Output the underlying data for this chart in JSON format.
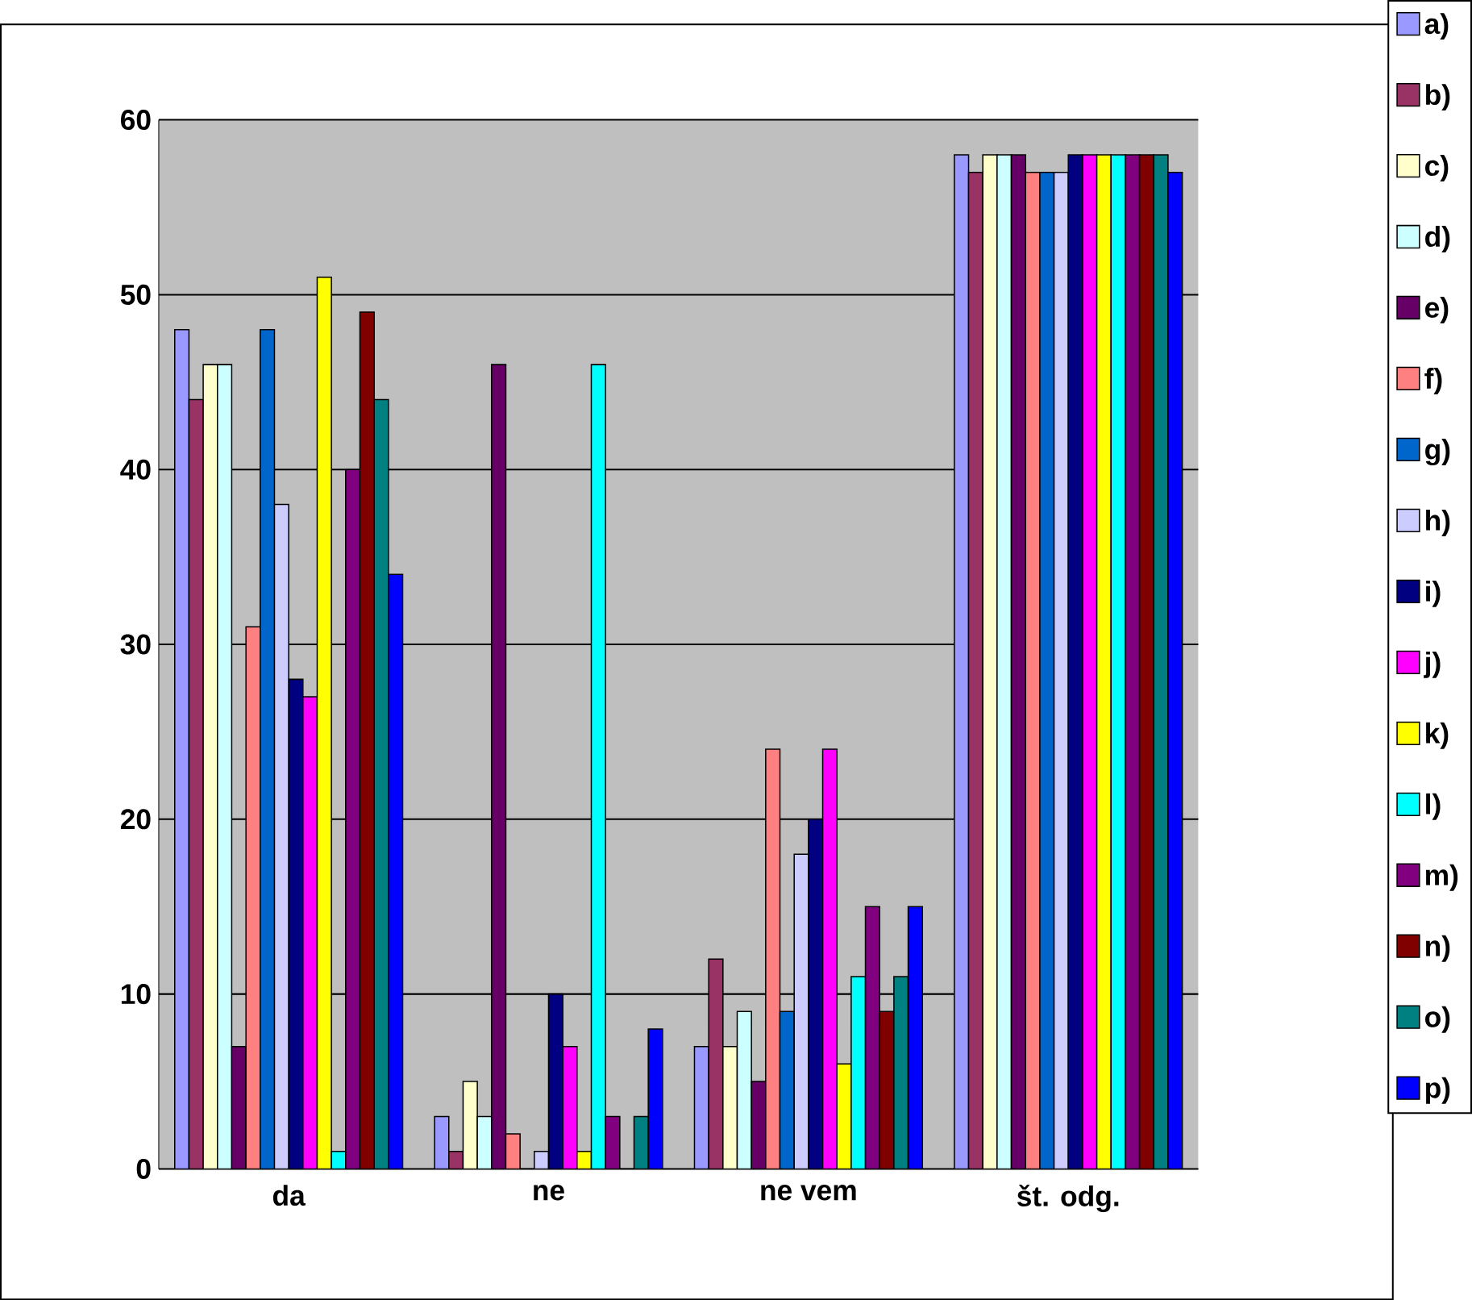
{
  "chart_data": {
    "type": "bar",
    "categories": [
      "da",
      "ne",
      "ne vem",
      "št. odg."
    ],
    "series": [
      {
        "name": "a)",
        "color": "#9999ff",
        "values": [
          48,
          3,
          7,
          58
        ]
      },
      {
        "name": "b)",
        "color": "#993366",
        "values": [
          44,
          1,
          12,
          57
        ]
      },
      {
        "name": "c)",
        "color": "#ffffcc",
        "values": [
          46,
          5,
          7,
          58
        ]
      },
      {
        "name": "d)",
        "color": "#ccffff",
        "values": [
          46,
          3,
          9,
          58
        ]
      },
      {
        "name": "e)",
        "color": "#660066",
        "values": [
          7,
          46,
          5,
          58
        ]
      },
      {
        "name": "f)",
        "color": "#ff8080",
        "values": [
          31,
          2,
          24,
          57
        ]
      },
      {
        "name": "g)",
        "color": "#0066cc",
        "values": [
          48,
          0,
          9,
          57
        ]
      },
      {
        "name": "h)",
        "color": "#ccccff",
        "values": [
          38,
          1,
          18,
          57
        ]
      },
      {
        "name": "i)",
        "color": "#000080",
        "values": [
          28,
          10,
          20,
          58
        ]
      },
      {
        "name": "j)",
        "color": "#ff00ff",
        "values": [
          27,
          7,
          24,
          58
        ]
      },
      {
        "name": "k)",
        "color": "#ffff00",
        "values": [
          51,
          1,
          6,
          58
        ]
      },
      {
        "name": "l)",
        "color": "#00ffff",
        "values": [
          1,
          46,
          11,
          58
        ]
      },
      {
        "name": "m)",
        "color": "#800080",
        "values": [
          40,
          3,
          15,
          58
        ]
      },
      {
        "name": "n)",
        "color": "#800000",
        "values": [
          49,
          0,
          9,
          58
        ]
      },
      {
        "name": "o)",
        "color": "#008080",
        "values": [
          44,
          3,
          11,
          58
        ]
      },
      {
        "name": "p)",
        "color": "#0000ff",
        "values": [
          34,
          8,
          15,
          57
        ]
      }
    ],
    "ylim": [
      0,
      60
    ],
    "yticks": [
      0,
      10,
      20,
      30,
      40,
      50,
      60
    ],
    "grid": "y",
    "legend": "right"
  }
}
